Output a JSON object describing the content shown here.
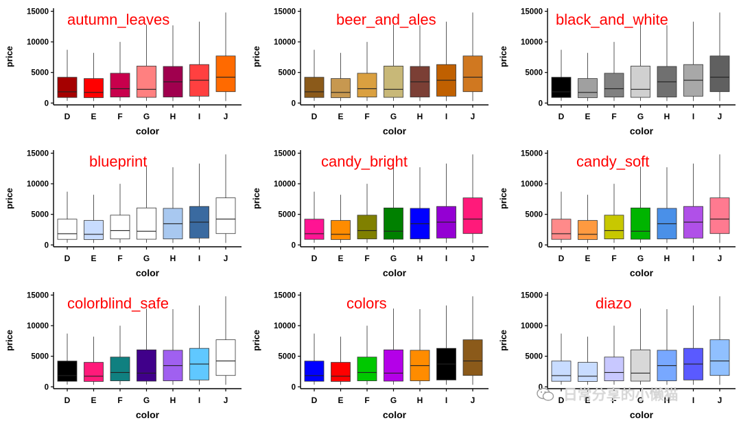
{
  "chart_data": {
    "type": "boxplot",
    "categories": [
      "D",
      "E",
      "F",
      "G",
      "H",
      "I",
      "J"
    ],
    "xlabel": "color",
    "ylabel": "price",
    "ylim": [
      -300,
      15500
    ],
    "yticks": [
      0,
      5000,
      10000,
      15000
    ],
    "stats": {
      "D": {
        "min": 357,
        "q1": 911,
        "median": 1838,
        "q3": 4214,
        "max": 8700
      },
      "E": {
        "min": 326,
        "q1": 882,
        "median": 1739,
        "q3": 4003,
        "max": 8200
      },
      "F": {
        "min": 342,
        "q1": 982,
        "median": 2344,
        "q3": 4868,
        "max": 10000
      },
      "G": {
        "min": 354,
        "q1": 931,
        "median": 2242,
        "q3": 6048,
        "max": 12800
      },
      "H": {
        "min": 337,
        "q1": 984,
        "median": 3460,
        "q3": 5980,
        "max": 12700
      },
      "I": {
        "min": 334,
        "q1": 1120,
        "median": 3730,
        "q3": 6292,
        "max": 13300
      },
      "J": {
        "min": 335,
        "q1": 1860,
        "median": 4234,
        "q3": 7695,
        "max": 14800
      }
    },
    "panels": [
      {
        "title": "autumn_leaves",
        "fills": [
          "#a50000",
          "#ff0000",
          "#c8004c",
          "#ff8080",
          "#a0004e",
          "#ff4040",
          "#ff6a00"
        ]
      },
      {
        "title": "beer_and_ales",
        "fills": [
          "#8b5a1a",
          "#c79850",
          "#daa040",
          "#c8b878",
          "#7b3f35",
          "#c06000",
          "#d07820"
        ]
      },
      {
        "title": "black_and_white",
        "fills": [
          "#000000",
          "#a0a0a0",
          "#808080",
          "#d0d0d0",
          "#707070",
          "#a8a8a8",
          "#606060"
        ]
      },
      {
        "title": "blueprint",
        "fills": [
          "#ffffff",
          "#c8dcff",
          "#ffffff",
          "#ffffff",
          "#a8c8f0",
          "#3a6aa0",
          "#ffffff"
        ]
      },
      {
        "title": "candy_bright",
        "fills": [
          "#ff1493",
          "#ff8c00",
          "#808000",
          "#008000",
          "#0000ff",
          "#9400d3",
          "#ff1a7a"
        ]
      },
      {
        "title": "candy_soft",
        "fills": [
          "#ff8a8a",
          "#ff9a40",
          "#c8c800",
          "#00b400",
          "#4a90e8",
          "#b050e8",
          "#ff7a90"
        ]
      },
      {
        "title": "colorblind_safe",
        "fills": [
          "#000000",
          "#ff1a7a",
          "#108080",
          "#40008a",
          "#a060f0",
          "#60c8ff",
          "#ffffff"
        ]
      },
      {
        "title": "colors",
        "fills": [
          "#0000ff",
          "#ff0000",
          "#00c800",
          "#b400e8",
          "#ff8c00",
          "#000000",
          "#8b5a1a"
        ]
      },
      {
        "title": "diazo",
        "fills": [
          "#c8dcff",
          "#c8dcff",
          "#c8c8ff",
          "#d8d8d8",
          "#78a8ff",
          "#5a5aff",
          "#90c0ff"
        ]
      }
    ]
  },
  "watermark": {
    "text": "日常分享的小懒猫",
    "icon": "wechat-icon"
  }
}
